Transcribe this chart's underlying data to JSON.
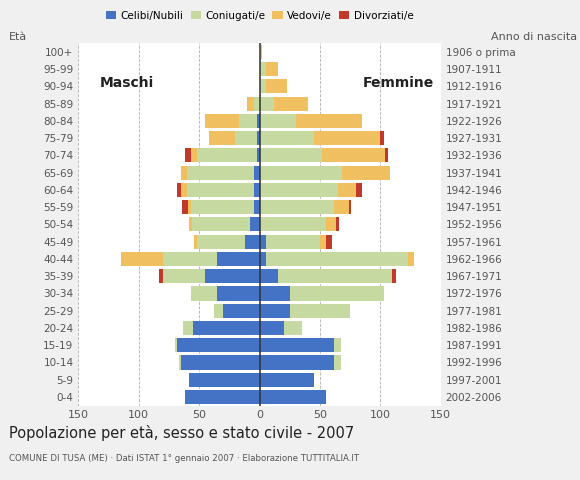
{
  "age_groups": [
    "0-4",
    "5-9",
    "10-14",
    "15-19",
    "20-24",
    "25-29",
    "30-34",
    "35-39",
    "40-44",
    "45-49",
    "50-54",
    "55-59",
    "60-64",
    "65-69",
    "70-74",
    "75-79",
    "80-84",
    "85-89",
    "90-94",
    "95-99",
    "100+"
  ],
  "birth_years": [
    "2002-2006",
    "1997-2001",
    "1992-1996",
    "1987-1991",
    "1982-1986",
    "1977-1981",
    "1972-1976",
    "1967-1971",
    "1962-1966",
    "1957-1961",
    "1952-1956",
    "1947-1951",
    "1942-1946",
    "1937-1941",
    "1932-1936",
    "1927-1931",
    "1922-1926",
    "1917-1921",
    "1912-1916",
    "1907-1911",
    "1906 o prima"
  ],
  "colors": {
    "celibi": "#4472c4",
    "coniugati": "#c5d9a0",
    "vedovi": "#f0c060",
    "divorziati": "#c0392b"
  },
  "males": {
    "celibi": [
      62,
      58,
      65,
      68,
      55,
      30,
      35,
      45,
      35,
      12,
      8,
      5,
      5,
      5,
      2,
      2,
      2,
      0,
      0,
      0,
      0
    ],
    "coniugati": [
      0,
      0,
      2,
      2,
      8,
      8,
      22,
      35,
      45,
      40,
      48,
      52,
      55,
      55,
      50,
      18,
      15,
      5,
      0,
      0,
      0
    ],
    "vedovi": [
      0,
      0,
      0,
      0,
      0,
      0,
      0,
      0,
      35,
      2,
      2,
      2,
      5,
      5,
      5,
      22,
      28,
      5,
      0,
      0,
      0
    ],
    "divorziati": [
      0,
      0,
      0,
      0,
      0,
      0,
      0,
      3,
      0,
      0,
      0,
      5,
      3,
      0,
      5,
      0,
      0,
      0,
      0,
      0,
      0
    ]
  },
  "females": {
    "celibi": [
      55,
      45,
      62,
      62,
      20,
      25,
      25,
      15,
      5,
      5,
      0,
      0,
      0,
      0,
      0,
      0,
      0,
      0,
      0,
      0,
      0
    ],
    "coniugati": [
      0,
      0,
      5,
      5,
      15,
      50,
      78,
      95,
      118,
      45,
      55,
      62,
      65,
      68,
      52,
      45,
      30,
      12,
      5,
      5,
      0
    ],
    "vedovi": [
      0,
      0,
      0,
      0,
      0,
      0,
      0,
      0,
      5,
      5,
      8,
      12,
      15,
      40,
      52,
      55,
      55,
      28,
      18,
      10,
      2
    ],
    "divorziati": [
      0,
      0,
      0,
      0,
      0,
      0,
      0,
      3,
      0,
      5,
      3,
      2,
      5,
      0,
      2,
      3,
      0,
      0,
      0,
      0,
      0
    ]
  },
  "xlim": 150,
  "xticks": [
    -150,
    -100,
    -50,
    0,
    50,
    100,
    150
  ],
  "xticklabels": [
    "150",
    "100",
    "50",
    "0",
    "50",
    "100",
    "150"
  ],
  "title": "Popolazione per età, sesso e stato civile - 2007",
  "subtitle": "COMUNE DI TUSA (ME) · Dati ISTAT 1° gennaio 2007 · Elaborazione TUTTITALIA.IT",
  "bg_color": "#f0f0f0",
  "plot_bg_color": "#ffffff"
}
